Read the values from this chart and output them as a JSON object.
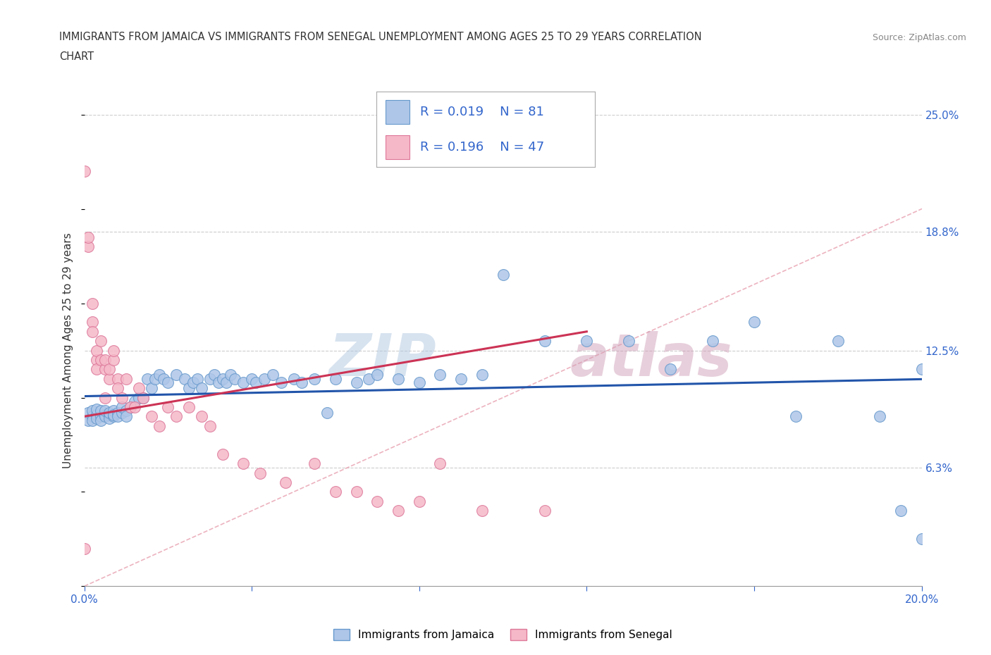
{
  "title_line1": "IMMIGRANTS FROM JAMAICA VS IMMIGRANTS FROM SENEGAL UNEMPLOYMENT AMONG AGES 25 TO 29 YEARS CORRELATION",
  "title_line2": "CHART",
  "source_text": "Source: ZipAtlas.com",
  "ylabel": "Unemployment Among Ages 25 to 29 years",
  "xlim": [
    0.0,
    0.2
  ],
  "ylim": [
    0.0,
    0.25
  ],
  "xticks": [
    0.0,
    0.04,
    0.08,
    0.12,
    0.16,
    0.2
  ],
  "xtick_labels": [
    "0.0%",
    "",
    "",
    "",
    "",
    "20.0%"
  ],
  "ytick_right": [
    0.0,
    0.063,
    0.125,
    0.188,
    0.25
  ],
  "ytick_right_labels": [
    "",
    "6.3%",
    "12.5%",
    "18.8%",
    "25.0%"
  ],
  "jamaica_color": "#aec6e8",
  "senegal_color": "#f5b8c8",
  "jamaica_edge": "#6699cc",
  "senegal_edge": "#dd7799",
  "trend_jamaica_color": "#2255aa",
  "trend_senegal_color": "#cc3355",
  "diag_color": "#e8a0b0",
  "watermark_blue": "#b0c8e0",
  "watermark_pink": "#d0a0b8",
  "grid_color": "#cccccc",
  "background_color": "#ffffff",
  "legend_r_jamaica": "R = 0.019",
  "legend_n_jamaica": "N = 81",
  "legend_r_senegal": "R = 0.196",
  "legend_n_senegal": "N = 47",
  "jamaica_label": "Immigrants from Jamaica",
  "senegal_label": "Immigrants from Senegal",
  "jamaica_x": [
    0.001,
    0.001,
    0.002,
    0.002,
    0.002,
    0.003,
    0.003,
    0.003,
    0.004,
    0.004,
    0.004,
    0.005,
    0.005,
    0.005,
    0.006,
    0.006,
    0.006,
    0.007,
    0.007,
    0.007,
    0.008,
    0.008,
    0.009,
    0.009,
    0.01,
    0.01,
    0.011,
    0.012,
    0.013,
    0.014,
    0.015,
    0.016,
    0.017,
    0.018,
    0.019,
    0.02,
    0.022,
    0.024,
    0.025,
    0.026,
    0.027,
    0.028,
    0.03,
    0.031,
    0.032,
    0.033,
    0.034,
    0.035,
    0.036,
    0.038,
    0.04,
    0.041,
    0.043,
    0.045,
    0.047,
    0.05,
    0.052,
    0.055,
    0.058,
    0.06,
    0.065,
    0.068,
    0.07,
    0.075,
    0.08,
    0.085,
    0.09,
    0.095,
    0.1,
    0.11,
    0.12,
    0.13,
    0.14,
    0.15,
    0.16,
    0.17,
    0.18,
    0.19,
    0.195,
    0.2,
    0.2
  ],
  "jamaica_y": [
    0.092,
    0.088,
    0.09,
    0.088,
    0.093,
    0.091,
    0.089,
    0.094,
    0.09,
    0.093,
    0.088,
    0.091,
    0.09,
    0.093,
    0.091,
    0.089,
    0.092,
    0.09,
    0.093,
    0.091,
    0.092,
    0.09,
    0.092,
    0.095,
    0.093,
    0.09,
    0.095,
    0.098,
    0.1,
    0.1,
    0.11,
    0.105,
    0.11,
    0.112,
    0.11,
    0.108,
    0.112,
    0.11,
    0.105,
    0.108,
    0.11,
    0.105,
    0.11,
    0.112,
    0.108,
    0.11,
    0.108,
    0.112,
    0.11,
    0.108,
    0.11,
    0.108,
    0.11,
    0.112,
    0.108,
    0.11,
    0.108,
    0.11,
    0.092,
    0.11,
    0.108,
    0.11,
    0.112,
    0.11,
    0.108,
    0.112,
    0.11,
    0.112,
    0.165,
    0.13,
    0.13,
    0.13,
    0.115,
    0.13,
    0.14,
    0.09,
    0.13,
    0.09,
    0.04,
    0.025,
    0.115
  ],
  "senegal_x": [
    0.0,
    0.0,
    0.001,
    0.001,
    0.002,
    0.002,
    0.002,
    0.003,
    0.003,
    0.003,
    0.004,
    0.004,
    0.005,
    0.005,
    0.005,
    0.006,
    0.006,
    0.007,
    0.007,
    0.008,
    0.008,
    0.009,
    0.01,
    0.011,
    0.012,
    0.013,
    0.014,
    0.016,
    0.018,
    0.02,
    0.022,
    0.025,
    0.028,
    0.03,
    0.033,
    0.038,
    0.042,
    0.048,
    0.055,
    0.06,
    0.065,
    0.07,
    0.075,
    0.08,
    0.085,
    0.095,
    0.11
  ],
  "senegal_y": [
    0.22,
    0.02,
    0.18,
    0.185,
    0.14,
    0.135,
    0.15,
    0.12,
    0.125,
    0.115,
    0.12,
    0.13,
    0.115,
    0.12,
    0.1,
    0.11,
    0.115,
    0.12,
    0.125,
    0.11,
    0.105,
    0.1,
    0.11,
    0.095,
    0.095,
    0.105,
    0.1,
    0.09,
    0.085,
    0.095,
    0.09,
    0.095,
    0.09,
    0.085,
    0.07,
    0.065,
    0.06,
    0.055,
    0.065,
    0.05,
    0.05,
    0.045,
    0.04,
    0.045,
    0.065,
    0.04,
    0.04
  ]
}
